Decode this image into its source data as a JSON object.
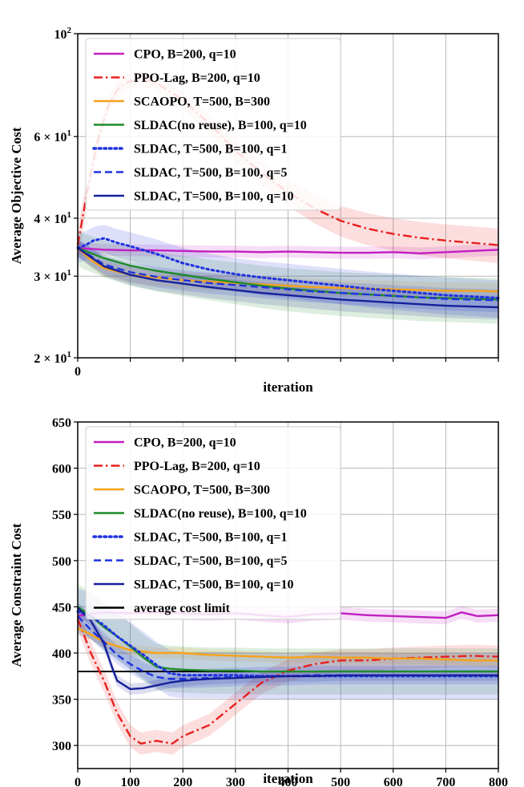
{
  "chart_data": [
    {
      "type": "line",
      "scale": "log",
      "xlabel": "iteration",
      "ylabel": "Average Objective Cost",
      "xlim": [
        0,
        800
      ],
      "ylim": [
        20,
        100
      ],
      "xticks": [
        0
      ],
      "xgrid": [
        0,
        100,
        200,
        300,
        400,
        500,
        600,
        700,
        800
      ],
      "yticks": [
        {
          "value": 100,
          "base": "10",
          "exp": "2"
        },
        {
          "value": 60,
          "base": "6 × 10",
          "exp": "1"
        },
        {
          "value": 40,
          "base": "4 × 10",
          "exp": "1"
        },
        {
          "value": 30,
          "base": "3 × 10",
          "exp": "1"
        },
        {
          "value": 20,
          "base": "2 × 10",
          "exp": "1"
        }
      ],
      "legend": "top-left",
      "series": [
        {
          "name": "CPO, B=200, q=10",
          "color": "#c21fc2",
          "dash": "solid",
          "band": 1.0,
          "x": [
            0,
            50,
            100,
            150,
            200,
            250,
            300,
            350,
            400,
            450,
            500,
            550,
            600,
            650,
            700,
            750,
            800
          ],
          "y": [
            34.5,
            34.2,
            34.1,
            34.1,
            34.0,
            33.9,
            33.9,
            33.8,
            33.9,
            33.8,
            33.7,
            33.7,
            33.8,
            33.6,
            33.8,
            34.0,
            34.2
          ]
        },
        {
          "name": "PPO-Lag, B=200, q=10",
          "color": "#e8201f",
          "dash": "dashdot",
          "band": 3.0,
          "x": [
            0,
            20,
            40,
            60,
            80,
            100,
            120,
            140,
            160,
            200,
            250,
            300,
            350,
            400,
            450,
            500,
            550,
            600,
            650,
            700,
            750,
            800
          ],
          "y": [
            35,
            47,
            60,
            71,
            77,
            79,
            80,
            79,
            77,
            72,
            64,
            56,
            50,
            45.5,
            42,
            39.5,
            38,
            37,
            36.3,
            35.8,
            35.4,
            35.0
          ]
        },
        {
          "name": "SCAOPO, T=500, B=300",
          "color": "#f5a21a",
          "dash": "solid",
          "band": 1.2,
          "x": [
            0,
            25,
            50,
            100,
            150,
            200,
            250,
            300,
            350,
            400,
            450,
            500,
            550,
            600,
            650,
            700,
            750,
            800
          ],
          "y": [
            34.5,
            32.5,
            31.2,
            30.2,
            29.8,
            29.4,
            29.2,
            29.0,
            28.8,
            28.6,
            28.4,
            28.3,
            28.2,
            28.1,
            28.0,
            27.9,
            27.9,
            27.8
          ]
        },
        {
          "name": "SLDAC(no reuse), B=100, q=10",
          "color": "#1e8c2a",
          "dash": "solid",
          "band": 3.0,
          "x": [
            0,
            50,
            100,
            150,
            200,
            250,
            300,
            350,
            400,
            450,
            500,
            550,
            600,
            650,
            700,
            750,
            800
          ],
          "y": [
            34.5,
            32.8,
            31.6,
            30.8,
            30.2,
            29.6,
            29.1,
            28.6,
            28.2,
            27.9,
            27.6,
            27.4,
            27.2,
            27.0,
            26.9,
            26.8,
            26.7
          ]
        },
        {
          "name": "SLDAC, T=500, B=100, q=1",
          "color": "#1f32e0",
          "dash": "dotted",
          "band": 2.5,
          "x": [
            0,
            15,
            30,
            50,
            75,
            100,
            150,
            200,
            250,
            300,
            350,
            400,
            450,
            500,
            550,
            600,
            650,
            700,
            750,
            800
          ],
          "y": [
            34.5,
            35.0,
            35.8,
            36.2,
            35.4,
            34.8,
            33.5,
            32.0,
            31.0,
            30.3,
            29.8,
            29.4,
            29.0,
            28.6,
            28.2,
            27.9,
            27.6,
            27.3,
            27.1,
            26.9
          ]
        },
        {
          "name": "SLDAC, T=500, B=100, q=5",
          "color": "#1f32e0",
          "dash": "dashed",
          "band": 1.5,
          "x": [
            0,
            50,
            100,
            150,
            200,
            250,
            300,
            350,
            400,
            450,
            500,
            550,
            600,
            650,
            700,
            750,
            800
          ],
          "y": [
            34.5,
            31.8,
            30.6,
            29.9,
            29.4,
            29.0,
            28.7,
            28.4,
            28.1,
            27.8,
            27.6,
            27.4,
            27.2,
            27.0,
            26.8,
            26.7,
            26.6
          ]
        },
        {
          "name": "SLDAC, T=500, B=100, q=10",
          "color": "#16209a",
          "dash": "solid",
          "band": 1.5,
          "x": [
            0,
            50,
            100,
            150,
            200,
            250,
            300,
            350,
            400,
            450,
            500,
            550,
            600,
            650,
            700,
            750,
            800
          ],
          "y": [
            34.5,
            31.5,
            30.2,
            29.4,
            28.9,
            28.4,
            28.0,
            27.6,
            27.3,
            27.0,
            26.7,
            26.5,
            26.3,
            26.1,
            25.9,
            25.8,
            25.7
          ]
        }
      ]
    },
    {
      "type": "line",
      "scale": "linear",
      "xlabel": "iteration",
      "ylabel": "Average Constraint Cost",
      "xlim": [
        0,
        800
      ],
      "ylim": [
        275,
        650
      ],
      "xticks": [
        0,
        100,
        200,
        300,
        400,
        500,
        600,
        700,
        800
      ],
      "yticks": [
        300,
        350,
        400,
        450,
        500,
        550,
        600,
        650
      ],
      "legend": "top-left",
      "limit": {
        "name": "average cost limit",
        "value": 380,
        "color": "#000000"
      },
      "series": [
        {
          "name": "CPO, B=200, q=10",
          "color": "#c21fc2",
          "dash": "solid",
          "band": 7,
          "x": [
            0,
            20,
            50,
            100,
            150,
            200,
            250,
            300,
            350,
            400,
            450,
            500,
            550,
            600,
            650,
            700,
            730,
            760,
            800
          ],
          "y": [
            440,
            442,
            444,
            443,
            444,
            443,
            442,
            443,
            441,
            439,
            442,
            443,
            441,
            440,
            439,
            438,
            444,
            440,
            441
          ]
        },
        {
          "name": "PPO-Lag, B=200, q=10",
          "color": "#e8201f",
          "dash": "dashdot",
          "band": 12,
          "x": [
            0,
            25,
            50,
            75,
            100,
            120,
            150,
            180,
            200,
            250,
            300,
            350,
            400,
            450,
            500,
            550,
            600,
            650,
            700,
            750,
            800
          ],
          "y": [
            437,
            400,
            370,
            335,
            310,
            302,
            305,
            302,
            310,
            322,
            345,
            368,
            381,
            388,
            392,
            392,
            394,
            395,
            396,
            397,
            396
          ]
        },
        {
          "name": "SCAOPO, T=500, B=300",
          "color": "#f5a21a",
          "dash": "solid",
          "band": 6,
          "x": [
            0,
            25,
            50,
            100,
            150,
            200,
            250,
            300,
            350,
            400,
            450,
            500,
            550,
            600,
            650,
            700,
            750,
            800
          ],
          "y": [
            427,
            420,
            412,
            403,
            400,
            400,
            398,
            397,
            396,
            395,
            396,
            395,
            395,
            394,
            394,
            393,
            392,
            392
          ]
        },
        {
          "name": "SLDAC(no reuse), B=100, q=10",
          "color": "#1e8c2a",
          "dash": "solid",
          "band": 25,
          "x": [
            0,
            25,
            50,
            75,
            100,
            125,
            150,
            175,
            200,
            250,
            300,
            350,
            400,
            450,
            500,
            550,
            600,
            650,
            700,
            750,
            800
          ],
          "y": [
            450,
            440,
            428,
            418,
            407,
            395,
            385,
            383,
            382,
            381,
            381,
            380,
            380,
            380,
            380,
            380,
            380,
            380,
            380,
            380,
            380
          ]
        },
        {
          "name": "SLDAC, T=500, B=100, q=1",
          "color": "#1f32e0",
          "dash": "dotted",
          "band": 25,
          "x": [
            0,
            25,
            50,
            75,
            100,
            125,
            150,
            175,
            200,
            250,
            300,
            350,
            400,
            450,
            500,
            550,
            600,
            650,
            700,
            750,
            800
          ],
          "y": [
            445,
            440,
            430,
            418,
            408,
            398,
            387,
            378,
            376,
            376,
            376,
            375,
            375,
            375,
            375,
            375,
            375,
            375,
            375,
            375,
            375
          ]
        },
        {
          "name": "SLDAC, T=500, B=100, q=5",
          "color": "#1f32e0",
          "dash": "dashed",
          "band": 10,
          "x": [
            0,
            25,
            50,
            75,
            100,
            125,
            150,
            175,
            200,
            250,
            300,
            350,
            400,
            450,
            500,
            550,
            600,
            650,
            700,
            750,
            800
          ],
          "y": [
            440,
            425,
            412,
            398,
            388,
            380,
            374,
            372,
            372,
            373,
            374,
            375,
            375,
            376,
            376,
            376,
            376,
            376,
            376,
            376,
            376
          ]
        },
        {
          "name": "SLDAC, T=500, B=100, q=10",
          "color": "#16209a",
          "dash": "solid",
          "band": 6,
          "x": [
            0,
            25,
            50,
            65,
            75,
            100,
            125,
            150,
            175,
            200,
            250,
            300,
            350,
            400,
            450,
            500,
            550,
            600,
            650,
            700,
            750,
            800
          ],
          "y": [
            449,
            435,
            410,
            385,
            370,
            361,
            362,
            365,
            368,
            370,
            372,
            373,
            374,
            375,
            375,
            376,
            376,
            376,
            376,
            376,
            376,
            376
          ]
        }
      ]
    }
  ]
}
